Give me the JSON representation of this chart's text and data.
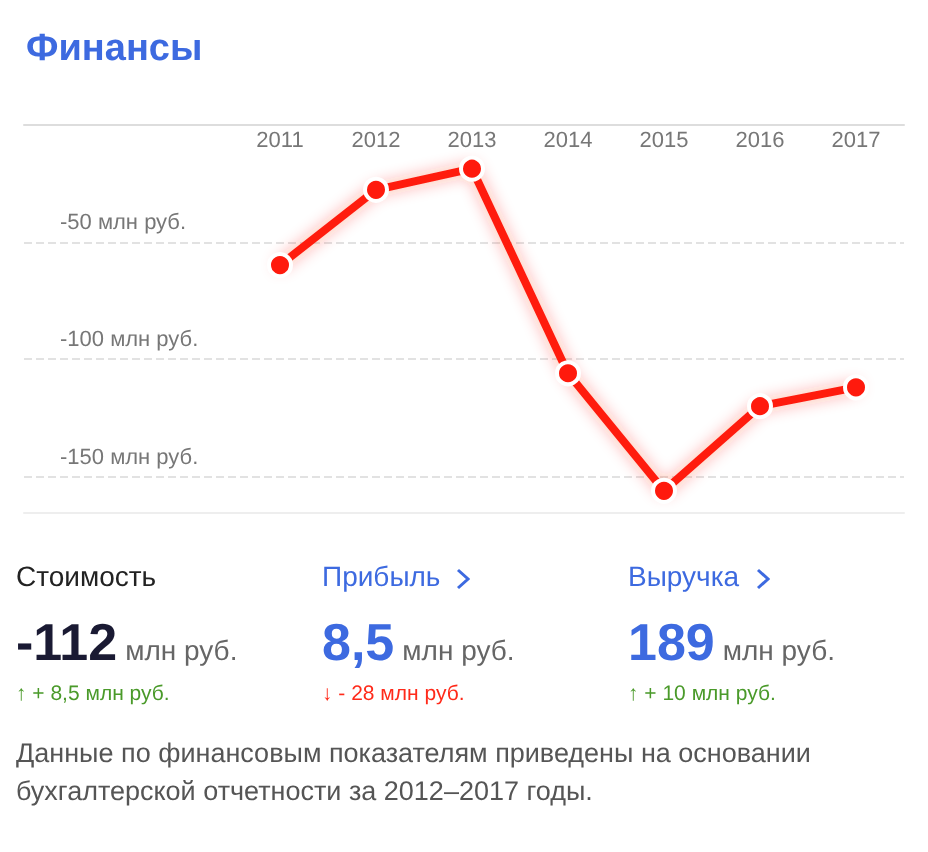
{
  "chart_data": [
    {
      "type": "line",
      "title": "Финансы",
      "categories": [
        "2011",
        "2012",
        "2013",
        "2014",
        "2015",
        "2016",
        "2017"
      ],
      "series": [
        {
          "color": "#ff1a0d",
          "values": [
            -60,
            -28,
            -19,
            -106,
            -156,
            -120,
            -112
          ]
        }
      ],
      "ylim": [
        -165,
        0
      ],
      "yticks": [
        {
          "value": 0,
          "label": null
        },
        {
          "value": -50,
          "label": "-50 млн руб."
        },
        {
          "value": -100,
          "label": "-100 млн руб."
        },
        {
          "value": -150,
          "label": "-150 млн руб."
        }
      ],
      "grid": "y",
      "marker": "circle",
      "line_style": "solid"
    },
    {
      "type": "other",
      "annotations": [
        "Стоимость",
        "-112",
        "млн руб.",
        "↑ + 8,5 млн руб.",
        "Прибыль",
        "8,5",
        "млн руб.",
        "↓ - 28 млн руб.",
        "Выручка",
        "189",
        "млн руб.",
        "↑ + 10 млн руб.",
        "Данные по финансовым показателям приведены на основании бухгалтерской отчетности за 2012–2017 годы."
      ]
    }
  ]
}
